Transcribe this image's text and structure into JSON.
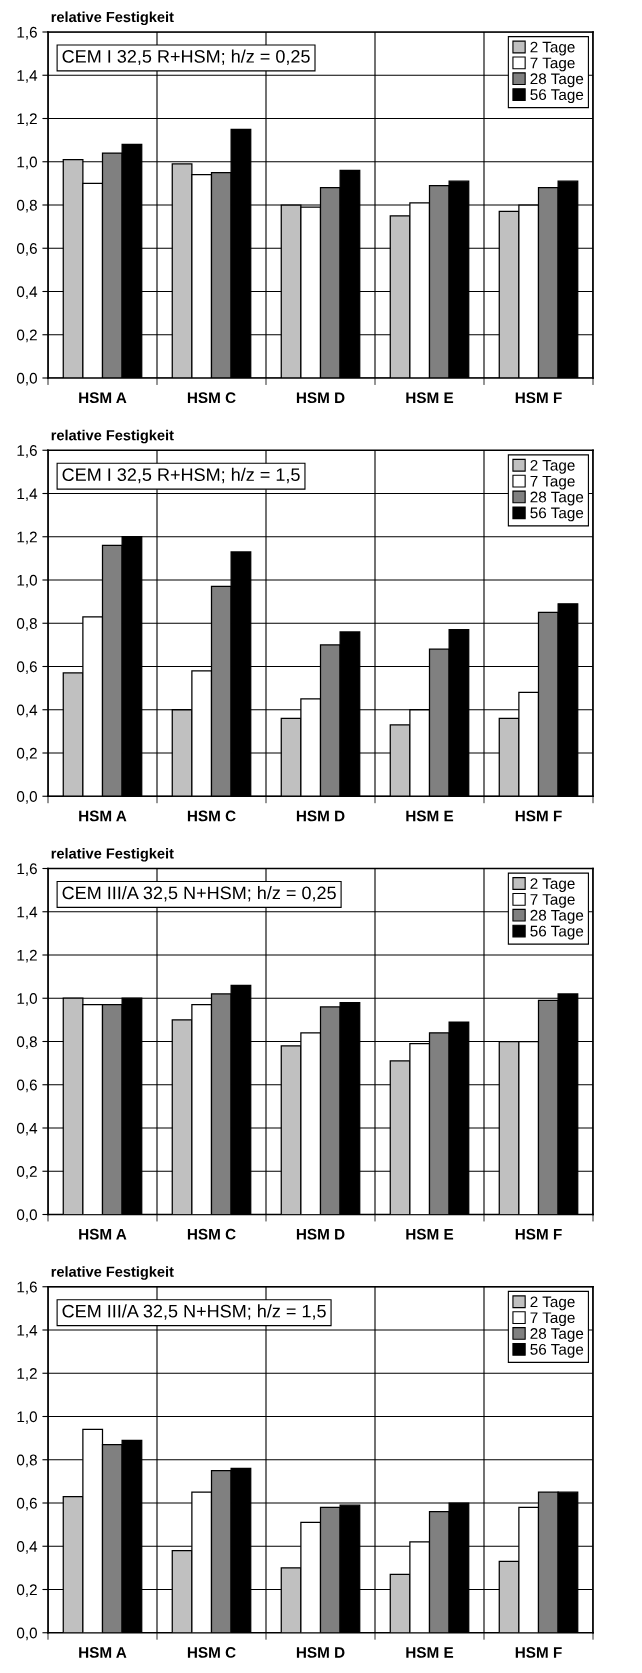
{
  "chart_data": [
    {
      "type": "bar",
      "ylabel": "relative Festigkeit",
      "annotations": [
        "CEM I 32,5 R+HSM; h/z = 0,25"
      ],
      "categories": [
        "HSM A",
        "HSM C",
        "HSM D",
        "HSM E",
        "HSM F"
      ],
      "series": [
        {
          "name": "2 Tage",
          "color": "#c0c0c0",
          "values": [
            1.01,
            0.99,
            0.8,
            0.75,
            0.77
          ]
        },
        {
          "name": "7 Tage",
          "color": "#ffffff",
          "values": [
            0.9,
            0.94,
            0.79,
            0.81,
            0.8
          ]
        },
        {
          "name": "28 Tage",
          "color": "#808080",
          "values": [
            1.04,
            0.95,
            0.88,
            0.89,
            0.88
          ]
        },
        {
          "name": "56 Tage",
          "color": "#000000",
          "values": [
            1.08,
            1.15,
            0.96,
            0.91,
            0.91
          ]
        }
      ],
      "ylim": [
        0,
        1.6
      ],
      "yticks": [
        {
          "value": 0,
          "label": "0,0"
        },
        {
          "value": 0.2,
          "label": "0,2"
        },
        {
          "value": 0.4,
          "label": "0,4"
        },
        {
          "value": 0.6,
          "label": "0,6"
        },
        {
          "value": 0.8,
          "label": "0,8"
        },
        {
          "value": 1.0,
          "label": "1,0"
        },
        {
          "value": 1.2,
          "label": "1,2"
        },
        {
          "value": 1.4,
          "label": "1,4"
        },
        {
          "value": 1.6,
          "label": "1,6"
        }
      ],
      "grid": true,
      "legend": "top right"
    },
    {
      "type": "bar",
      "ylabel": "relative Festigkeit",
      "annotations": [
        "CEM I 32,5 R+HSM; h/z = 1,5"
      ],
      "categories": [
        "HSM A",
        "HSM C",
        "HSM D",
        "HSM E",
        "HSM F"
      ],
      "series": [
        {
          "name": "2 Tage",
          "color": "#c0c0c0",
          "values": [
            0.57,
            0.4,
            0.36,
            0.33,
            0.36
          ]
        },
        {
          "name": "7 Tage",
          "color": "#ffffff",
          "values": [
            0.83,
            0.58,
            0.45,
            0.4,
            0.48
          ]
        },
        {
          "name": "28 Tage",
          "color": "#808080",
          "values": [
            1.16,
            0.97,
            0.7,
            0.68,
            0.85
          ]
        },
        {
          "name": "56 Tage",
          "color": "#000000",
          "values": [
            1.2,
            1.13,
            0.76,
            0.77,
            0.89
          ]
        }
      ],
      "ylim": [
        0,
        1.6
      ],
      "yticks": [
        {
          "value": 0,
          "label": "0,0"
        },
        {
          "value": 0.2,
          "label": "0,2"
        },
        {
          "value": 0.4,
          "label": "0,4"
        },
        {
          "value": 0.6,
          "label": "0,6"
        },
        {
          "value": 0.8,
          "label": "0,8"
        },
        {
          "value": 1.0,
          "label": "1,0"
        },
        {
          "value": 1.2,
          "label": "1,2"
        },
        {
          "value": 1.4,
          "label": "1,4"
        },
        {
          "value": 1.6,
          "label": "1,6"
        }
      ],
      "grid": true,
      "legend": "top right"
    },
    {
      "type": "bar",
      "ylabel": "relative Festigkeit",
      "annotations": [
        "CEM III/A 32,5 N+HSM; h/z = 0,25"
      ],
      "categories": [
        "HSM A",
        "HSM C",
        "HSM D",
        "HSM E",
        "HSM F"
      ],
      "series": [
        {
          "name": "2 Tage",
          "color": "#c0c0c0",
          "values": [
            1.0,
            0.9,
            0.78,
            0.71,
            0.8
          ]
        },
        {
          "name": "7 Tage",
          "color": "#ffffff",
          "values": [
            0.97,
            0.97,
            0.84,
            0.79,
            0.8
          ]
        },
        {
          "name": "28 Tage",
          "color": "#808080",
          "values": [
            0.97,
            1.02,
            0.96,
            0.84,
            0.99
          ]
        },
        {
          "name": "56 Tage",
          "color": "#000000",
          "values": [
            1.0,
            1.06,
            0.98,
            0.89,
            1.02
          ]
        }
      ],
      "ylim": [
        0,
        1.6
      ],
      "yticks": [
        {
          "value": 0,
          "label": "0,0"
        },
        {
          "value": 0.2,
          "label": "0,2"
        },
        {
          "value": 0.4,
          "label": "0,4"
        },
        {
          "value": 0.6,
          "label": "0,6"
        },
        {
          "value": 0.8,
          "label": "0,8"
        },
        {
          "value": 1.0,
          "label": "1,0"
        },
        {
          "value": 1.2,
          "label": "1,2"
        },
        {
          "value": 1.4,
          "label": "1,4"
        },
        {
          "value": 1.6,
          "label": "1,6"
        }
      ],
      "grid": true,
      "legend": "top right"
    },
    {
      "type": "bar",
      "ylabel": "relative Festigkeit",
      "annotations": [
        "CEM III/A 32,5 N+HSM; h/z = 1,5"
      ],
      "categories": [
        "HSM A",
        "HSM C",
        "HSM D",
        "HSM E",
        "HSM F"
      ],
      "series": [
        {
          "name": "2 Tage",
          "color": "#c0c0c0",
          "values": [
            0.63,
            0.38,
            0.3,
            0.27,
            0.33
          ]
        },
        {
          "name": "7 Tage",
          "color": "#ffffff",
          "values": [
            0.94,
            0.65,
            0.51,
            0.42,
            0.58
          ]
        },
        {
          "name": "28 Tage",
          "color": "#808080",
          "values": [
            0.87,
            0.75,
            0.58,
            0.56,
            0.65
          ]
        },
        {
          "name": "56 Tage",
          "color": "#000000",
          "values": [
            0.89,
            0.76,
            0.59,
            0.6,
            0.65
          ]
        }
      ],
      "ylim": [
        0,
        1.6
      ],
      "yticks": [
        {
          "value": 0,
          "label": "0,0"
        },
        {
          "value": 0.2,
          "label": "0,2"
        },
        {
          "value": 0.4,
          "label": "0,4"
        },
        {
          "value": 0.6,
          "label": "0,6"
        },
        {
          "value": 0.8,
          "label": "0,8"
        },
        {
          "value": 1.0,
          "label": "1,0"
        },
        {
          "value": 1.2,
          "label": "1,2"
        },
        {
          "value": 1.4,
          "label": "1,4"
        },
        {
          "value": 1.6,
          "label": "1,6"
        }
      ],
      "grid": true,
      "legend": "top right"
    }
  ]
}
